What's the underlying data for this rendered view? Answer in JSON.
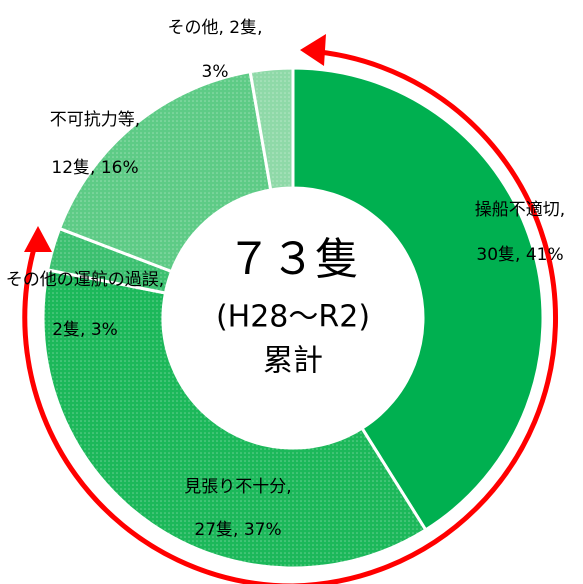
{
  "chart_data": {
    "type": "donut",
    "values": [
      30,
      27,
      2,
      12,
      2
    ],
    "value_labels": [
      [
        "操船不適切,",
        "30隻, 41%"
      ],
      [
        "見張り不十分,",
        "27隻, 37%"
      ],
      [
        "その他の運航の過誤,",
        "2隻, 3%"
      ],
      [
        "不可抗力等,",
        "12隻, 16%"
      ],
      [
        "その他, 2隻,",
        "3%"
      ]
    ],
    "colors": [
      "#00b050",
      "#1cb85a",
      "#3cc070",
      "#5ecb86",
      "#8fd9a8"
    ],
    "center_text": [
      "７３隻",
      "(H28～R2)",
      "累計"
    ]
  }
}
